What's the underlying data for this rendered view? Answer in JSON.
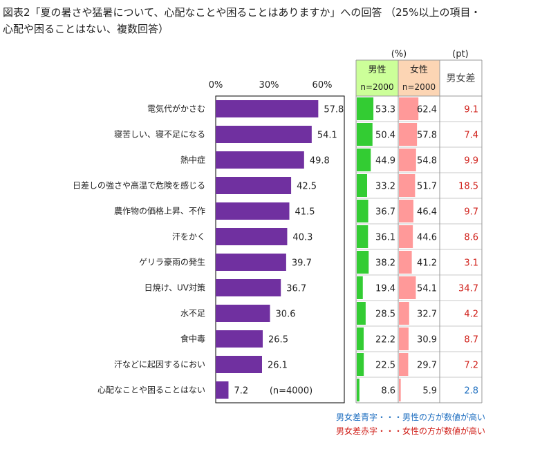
{
  "title_lines": [
    "図表2「夏の暑さや猛暑について、心配なことや困ることはありますか」への回答 （25%以上の項目・",
    "心配や困ることはない、複数回答）"
  ],
  "notes": {
    "blue": "男女差青字・・・男性の方が数値が高い",
    "red": "男女差赤字・・・女性の方が数値が高い"
  },
  "chart_data": {
    "type": "bar",
    "orientation": "horizontal",
    "categories": [
      "電気代がかさむ",
      "寝苦しい、寝不足になる",
      "熱中症",
      "日差しの強さや高温で危険を感じる",
      "農作物の価格上昇、不作",
      "汗をかく",
      "ゲリラ豪雨の発生",
      "日焼け、UV対策",
      "水不足",
      "食中毒",
      "汗などに起因するにおい",
      "心配なことや困ることはない"
    ],
    "total": {
      "values": [
        57.8,
        54.1,
        49.8,
        42.5,
        41.5,
        40.3,
        39.7,
        36.7,
        30.6,
        26.5,
        26.1,
        7.2
      ],
      "ticks": [
        "0%",
        "30%",
        "60%"
      ],
      "tick_values": [
        0,
        30,
        60
      ],
      "xlim": [
        0,
        60
      ],
      "n_label": "(n=4000)",
      "color": "#7030a0"
    },
    "gender_table": {
      "unit_pct": "(%)",
      "unit_pt": "(pt)",
      "male": {
        "name": "男性",
        "n": "n=2000",
        "values": [
          53.3,
          50.4,
          44.9,
          33.2,
          36.7,
          36.1,
          38.2,
          19.4,
          28.5,
          22.2,
          22.5,
          8.6
        ],
        "color": "#33cc33",
        "header_bg": "#ccff99"
      },
      "female": {
        "name": "女性",
        "n": "n=2000",
        "values": [
          62.4,
          57.8,
          54.8,
          51.7,
          46.4,
          44.6,
          41.2,
          54.1,
          32.7,
          30.9,
          29.7,
          5.9
        ],
        "color": "#ff9999",
        "header_bg": "#fcd5b4"
      },
      "diff": {
        "name": "男女差",
        "values": [
          "9.1",
          "7.4",
          "9.9",
          "18.5",
          "9.7",
          "8.6",
          "3.1",
          "34.7",
          "4.2",
          "8.7",
          "7.2",
          "2.8"
        ],
        "colors": [
          "#d0201a",
          "#d0201a",
          "#d0201a",
          "#d0201a",
          "#d0201a",
          "#d0201a",
          "#d0201a",
          "#d0201a",
          "#d0201a",
          "#d0201a",
          "#d0201a",
          "#1f6fc0"
        ]
      }
    }
  }
}
